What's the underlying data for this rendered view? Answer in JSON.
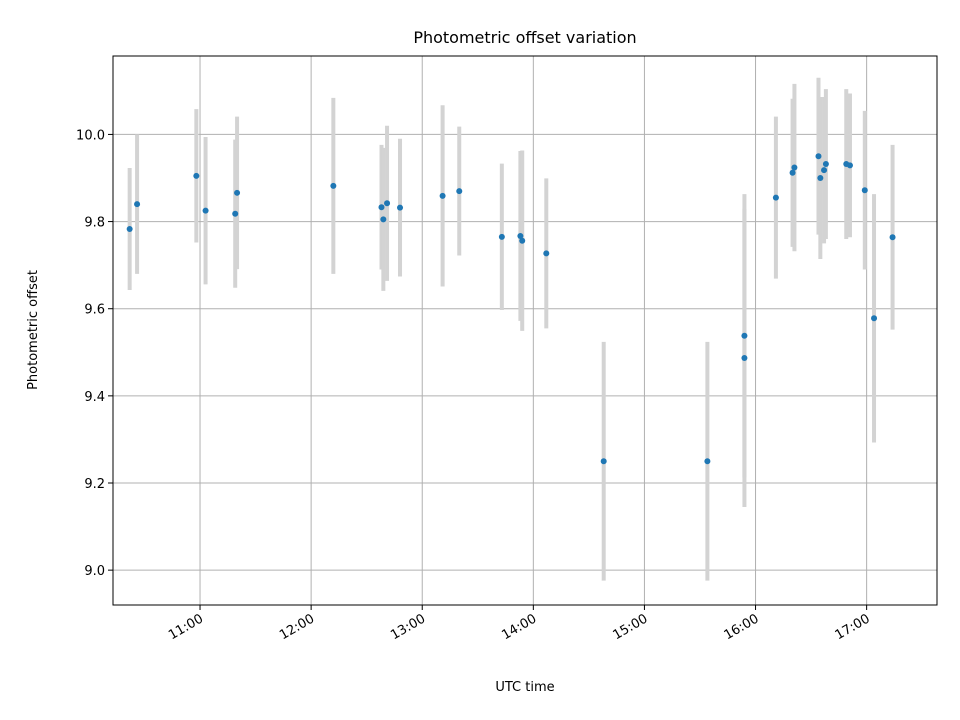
{
  "chart_data": {
    "type": "scatter",
    "title": "Photometric offset variation",
    "xlabel": "UTC time",
    "ylabel": "Photometric offset",
    "xlim": [
      "10:13",
      "17:38"
    ],
    "ylim": [
      8.92,
      10.18
    ],
    "x_ticks": [
      "11:00",
      "12:00",
      "13:00",
      "14:00",
      "15:00",
      "16:00",
      "17:00"
    ],
    "y_ticks": [
      9.0,
      9.2,
      9.4,
      9.6,
      9.8,
      10.0
    ],
    "grid": true,
    "legend": "none",
    "colors": {
      "point": "#1f77b4",
      "error_bar": "#d3d3d3"
    },
    "series": [
      {
        "points": [
          {
            "x": "10:22",
            "y": 9.783,
            "err_low": 9.643,
            "err_high": 9.923
          },
          {
            "x": "10:26",
            "y": 9.84,
            "err_low": 9.68,
            "err_high": 10.0
          },
          {
            "x": "10:58",
            "y": 9.905,
            "err_low": 9.752,
            "err_high": 10.058
          },
          {
            "x": "11:03",
            "y": 9.825,
            "err_low": 9.656,
            "err_high": 9.994
          },
          {
            "x": "11:19",
            "y": 9.818,
            "err_low": 9.648,
            "err_high": 9.988
          },
          {
            "x": "11:20",
            "y": 9.866,
            "err_low": 9.691,
            "err_high": 10.041
          },
          {
            "x": "12:12",
            "y": 9.882,
            "err_low": 9.68,
            "err_high": 10.084
          },
          {
            "x": "12:38",
            "y": 9.833,
            "err_low": 9.69,
            "err_high": 9.976
          },
          {
            "x": "12:39",
            "y": 9.805,
            "err_low": 9.641,
            "err_high": 9.969
          },
          {
            "x": "12:41",
            "y": 9.842,
            "err_low": 9.664,
            "err_high": 10.02
          },
          {
            "x": "12:48",
            "y": 9.832,
            "err_low": 9.674,
            "err_high": 9.99
          },
          {
            "x": "13:11",
            "y": 9.859,
            "err_low": 9.651,
            "err_high": 10.067
          },
          {
            "x": "13:20",
            "y": 9.87,
            "err_low": 9.722,
            "err_high": 10.018
          },
          {
            "x": "13:43",
            "y": 9.765,
            "err_low": 9.597,
            "err_high": 9.933
          },
          {
            "x": "13:53",
            "y": 9.767,
            "err_low": 9.572,
            "err_high": 9.962
          },
          {
            "x": "13:54",
            "y": 9.756,
            "err_low": 9.549,
            "err_high": 9.963
          },
          {
            "x": "14:07",
            "y": 9.727,
            "err_low": 9.555,
            "err_high": 9.899
          },
          {
            "x": "14:38",
            "y": 9.25,
            "err_low": 8.976,
            "err_high": 9.524
          },
          {
            "x": "15:34",
            "y": 9.25,
            "err_low": 8.976,
            "err_high": 9.524
          },
          {
            "x": "15:54",
            "y": 9.487,
            "err_low": 9.145,
            "err_high": 9.829
          },
          {
            "x": "15:54",
            "y": 9.538,
            "err_low": 9.213,
            "err_high": 9.863
          },
          {
            "x": "16:11",
            "y": 9.855,
            "err_low": 9.669,
            "err_high": 10.041
          },
          {
            "x": "16:20",
            "y": 9.912,
            "err_low": 9.742,
            "err_high": 10.082
          },
          {
            "x": "16:21",
            "y": 9.924,
            "err_low": 9.732,
            "err_high": 10.116
          },
          {
            "x": "16:34",
            "y": 9.95,
            "err_low": 9.77,
            "err_high": 10.13
          },
          {
            "x": "16:35",
            "y": 9.9,
            "err_low": 9.714,
            "err_high": 10.086
          },
          {
            "x": "16:37",
            "y": 9.918,
            "err_low": 9.75,
            "err_high": 10.086
          },
          {
            "x": "16:38",
            "y": 9.932,
            "err_low": 9.76,
            "err_high": 10.104
          },
          {
            "x": "16:49",
            "y": 9.932,
            "err_low": 9.76,
            "err_high": 10.104
          },
          {
            "x": "16:51",
            "y": 9.929,
            "err_low": 9.764,
            "err_high": 10.094
          },
          {
            "x": "16:59",
            "y": 9.872,
            "err_low": 9.69,
            "err_high": 10.054
          },
          {
            "x": "17:04",
            "y": 9.578,
            "err_low": 9.293,
            "err_high": 9.863
          },
          {
            "x": "17:14",
            "y": 9.764,
            "err_low": 9.552,
            "err_high": 9.976
          }
        ]
      }
    ]
  }
}
